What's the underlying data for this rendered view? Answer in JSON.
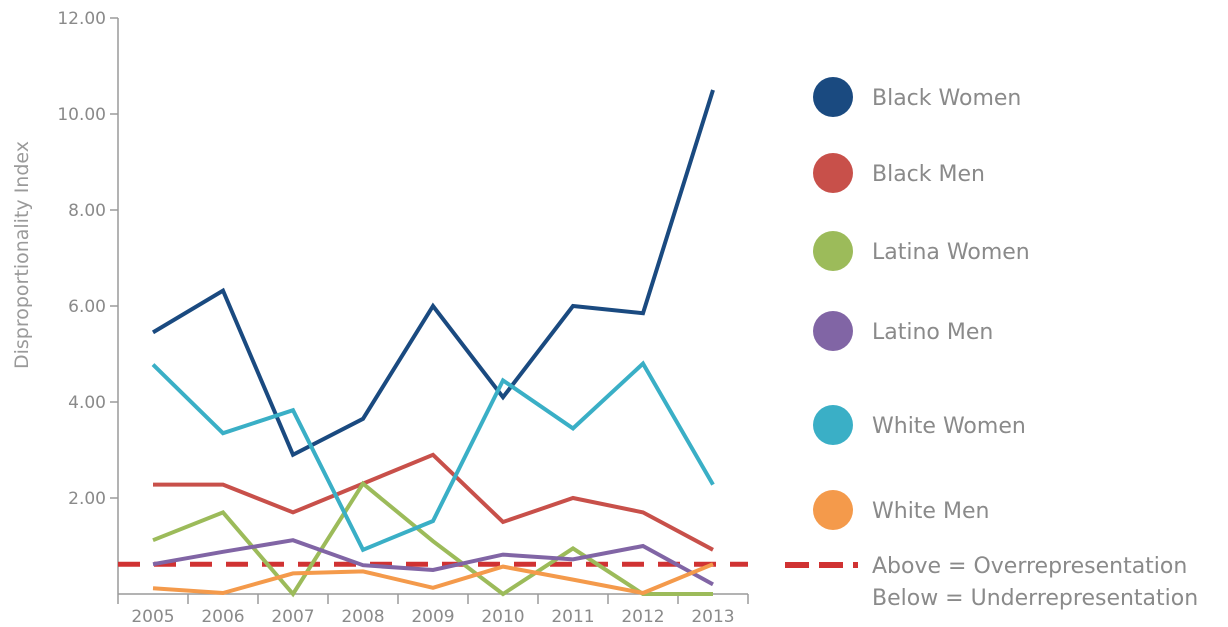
{
  "chart_data": {
    "type": "line",
    "title": "",
    "xlabel": "",
    "ylabel": "Disproportionality Index",
    "categories": [
      "2005",
      "2006",
      "2007",
      "2008",
      "2009",
      "2010",
      "2011",
      "2012",
      "2013"
    ],
    "ylim": [
      0,
      12
    ],
    "yticks": [
      "2.00",
      "4.00",
      "6.00",
      "8.00",
      "10.00",
      "12.00"
    ],
    "ytick_values": [
      2,
      4,
      6,
      8,
      10,
      12
    ],
    "grid": false,
    "legend_position": "right",
    "series": [
      {
        "name": "Black Women",
        "color": "#1a4a80",
        "values": [
          5.45,
          6.32,
          2.9,
          3.65,
          6.0,
          4.1,
          6.0,
          5.85,
          10.5
        ]
      },
      {
        "name": "Black Men",
        "color": "#c8504a",
        "values": [
          2.28,
          2.28,
          1.7,
          2.3,
          2.9,
          1.5,
          2.0,
          1.7,
          0.92
        ]
      },
      {
        "name": "Latina Women",
        "color": "#9cbb5a",
        "values": [
          1.12,
          1.7,
          0.0,
          2.3,
          1.1,
          0.0,
          0.95,
          0.0,
          0.0
        ]
      },
      {
        "name": "Latino Men",
        "color": "#8165a5",
        "values": [
          0.62,
          0.88,
          1.12,
          0.6,
          0.5,
          0.82,
          0.72,
          1.0,
          0.2
        ]
      },
      {
        "name": "White Women",
        "color": "#3aafc6",
        "values": [
          4.78,
          3.35,
          3.83,
          0.92,
          1.52,
          4.45,
          3.45,
          4.8,
          2.28
        ]
      },
      {
        "name": "White Men",
        "color": "#f49a4b",
        "values": [
          0.12,
          0.02,
          0.43,
          0.47,
          0.13,
          0.57,
          0.3,
          0.02,
          0.62
        ]
      }
    ],
    "reference_line": {
      "value": 0.62,
      "color": "#d03232",
      "style": "dashed",
      "label_line1": "Above = Overrepresentation",
      "label_line2": "Below = Underrepresentation"
    }
  }
}
